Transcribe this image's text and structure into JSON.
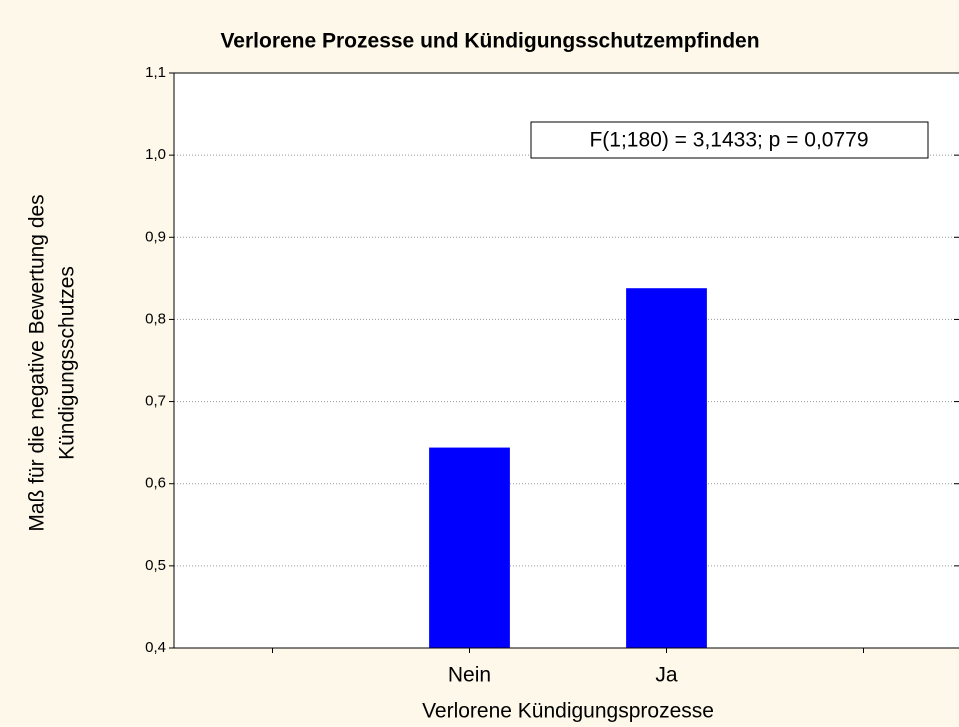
{
  "chart_data": {
    "type": "bar",
    "title": "Verlorene Prozesse und Kündigungsschutzempfinden",
    "x_label": "Verlorene Kündigungsprozesse",
    "y_label": [
      "Maß für die negative Bewertung des",
      "Kündigungsschutzes"
    ],
    "annotation": "F(1;180) = 3,1433; p = 0,0779",
    "categories": [
      null,
      "Nein",
      "Ja",
      null
    ],
    "values": [
      null,
      0.644,
      0.838,
      null
    ],
    "color": "#0000ff",
    "ylim": [
      0.4,
      1.1
    ],
    "yticks": [
      {
        "value": 0.4,
        "label": "0,4"
      },
      {
        "value": 0.5,
        "label": "0,5"
      },
      {
        "value": 0.6,
        "label": "0,6"
      },
      {
        "value": 0.7,
        "label": "0,7"
      },
      {
        "value": 0.8,
        "label": "0,8"
      },
      {
        "value": 0.9,
        "label": "0,9"
      },
      {
        "value": 1.0,
        "label": "1,0"
      },
      {
        "value": 1.1,
        "label": "1,1"
      }
    ],
    "grid": true
  }
}
